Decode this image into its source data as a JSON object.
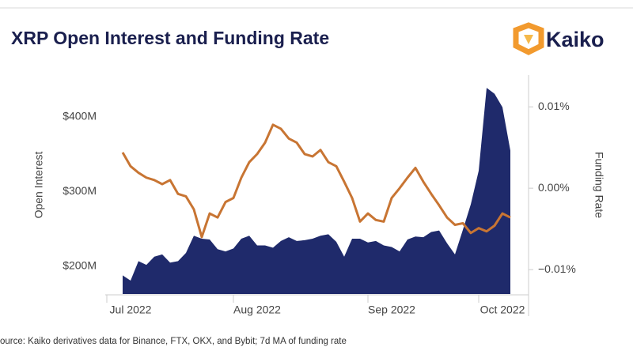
{
  "logo": "Kaiko",
  "chart_data": {
    "type": "area-line",
    "title": "XRP Open Interest and Funding Rate",
    "ylabel": "Open Interest",
    "y2label": "Funding Rate",
    "source": "ource: Kaiko derivatives data for Binance, FTX, OKX, and Bybit; 7d MA of funding rate",
    "categories": [
      null,
      "Jul 2022",
      null,
      null,
      null,
      null,
      null,
      null,
      null,
      null,
      null,
      null,
      null,
      null,
      null,
      null,
      null,
      "Aug 2022",
      null,
      null,
      null,
      null,
      null,
      null,
      null,
      null,
      null,
      null,
      null,
      null,
      null,
      null,
      null,
      null,
      "Sep 2022",
      null,
      null,
      null,
      null,
      null,
      null,
      null,
      null,
      null,
      null,
      null,
      null,
      null,
      "Oct 2022",
      null
    ],
    "ylim": [
      163,
      456
    ],
    "yticks": [
      {
        "value": 200,
        "label": "$200M"
      },
      {
        "value": 300,
        "label": "$300M"
      },
      {
        "value": 400,
        "label": "$400M"
      }
    ],
    "y2lim": [
      -0.013,
      0.0139
    ],
    "y2ticks": [
      {
        "value": -0.01,
        "label": "−0.01%"
      },
      {
        "value": 0,
        "label": "0.00%"
      },
      {
        "value": 0.01,
        "label": "0.01%"
      }
    ],
    "series": [
      {
        "type": "area",
        "color": "#1f2a6b",
        "values": [
          188,
          181,
          207,
          202,
          213,
          216,
          205,
          207,
          218,
          241,
          237,
          236,
          223,
          220,
          224,
          237,
          241,
          228,
          228,
          225,
          234,
          239,
          234,
          235,
          237,
          241,
          243,
          233,
          213,
          237,
          237,
          232,
          234,
          228,
          226,
          220,
          236,
          240,
          239,
          246,
          248,
          231,
          216,
          249,
          283,
          328,
          439,
          431,
          413,
          355
        ]
      },
      {
        "type": "line",
        "axis": "y2",
        "color": "#c87533",
        "values": [
          0.0044,
          0.0027,
          0.0019,
          0.0013,
          0.001,
          0.0005,
          0.001,
          -0.0007,
          -0.001,
          -0.0026,
          -0.006,
          -0.0031,
          -0.0036,
          -0.0017,
          -0.0012,
          0.0013,
          0.0032,
          0.0042,
          0.0056,
          0.0078,
          0.0073,
          0.0061,
          0.0056,
          0.0042,
          0.0039,
          0.0047,
          0.0032,
          0.0027,
          0.0008,
          -0.0012,
          -0.0041,
          -0.0031,
          -0.0039,
          -0.0041,
          -0.0012,
          0,
          0.0013,
          0.0025,
          0.0008,
          -0.0007,
          -0.0021,
          -0.0036,
          -0.0045,
          -0.0043,
          -0.0055,
          -0.0049,
          -0.0053,
          -0.0046,
          -0.0031,
          -0.0036
        ]
      }
    ]
  }
}
